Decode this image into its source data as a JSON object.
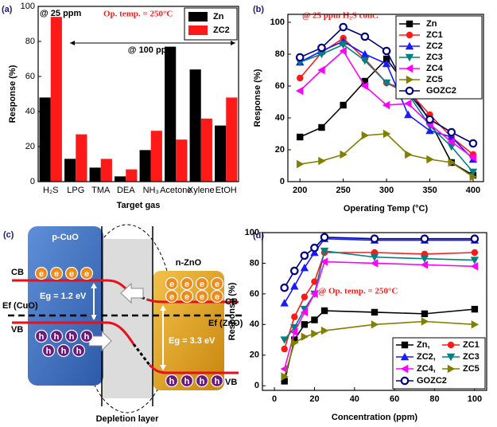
{
  "chart_data": [
    {
      "type": "bar",
      "panel_label": "(a)",
      "x_label": "Target gas",
      "y_label": "Response (%)",
      "categories": [
        "H₂S",
        "LPG",
        "TMA",
        "DEA",
        "NH₃",
        "Acetone",
        "Xylene",
        "EtOH"
      ],
      "series": [
        {
          "name": "Zn",
          "color": "#000000",
          "values": [
            48,
            13,
            8,
            3,
            18,
            77,
            64,
            32
          ]
        },
        {
          "name": "ZC2",
          "color": "#ff1a1a",
          "values": [
            94,
            27,
            13,
            7,
            29,
            24,
            36,
            48
          ]
        }
      ],
      "ylim": [
        0,
        100
      ],
      "yticks": [
        0,
        20,
        40,
        60,
        80,
        100
      ],
      "legend": "upper right",
      "annotations": [
        "@ 25 ppm",
        "@ 100 ppm",
        "Op. temp. = 250°C"
      ]
    },
    {
      "type": "line",
      "panel_label": "(b)",
      "x_label": "Operating Temp (°C)",
      "y_label": "Response (%)",
      "x": [
        200,
        225,
        250,
        275,
        300,
        325,
        350,
        375,
        400
      ],
      "series": [
        {
          "name": "Zn",
          "color": "#000000",
          "marker": "square",
          "values": [
            28,
            34,
            48,
            63,
            77,
            59,
            38,
            12,
            4
          ]
        },
        {
          "name": "ZC1",
          "color": "#ff1a1a",
          "marker": "circle",
          "values": [
            65,
            81,
            90,
            77,
            62,
            57,
            42,
            28,
            17
          ]
        },
        {
          "name": "ZC2",
          "color": "#1a1aff",
          "marker": "triangle-up",
          "values": [
            75,
            82,
            88,
            80,
            74,
            42,
            32,
            28,
            14
          ]
        },
        {
          "name": "ZC3",
          "color": "#008080",
          "marker": "triangle-down",
          "values": [
            75,
            80,
            86,
            76,
            62,
            55,
            35,
            22,
            6
          ]
        },
        {
          "name": "ZC4",
          "color": "#ff00ff",
          "marker": "triangle-left",
          "values": [
            57,
            70,
            82,
            60,
            48,
            49,
            36,
            25,
            15
          ]
        },
        {
          "name": "ZC5",
          "color": "#808000",
          "marker": "triangle-right",
          "values": [
            11,
            13,
            17,
            29,
            30,
            17,
            14,
            12,
            3
          ]
        },
        {
          "name": "GOZC2",
          "color": "#000080",
          "marker": "circle-dot",
          "values": [
            78,
            84,
            97,
            91,
            82,
            56,
            39,
            31,
            24
          ]
        }
      ],
      "xlim": [
        186,
        412
      ],
      "xticks": [
        200,
        250,
        300,
        350,
        400
      ],
      "ylim": [
        0,
        105
      ],
      "yticks": [
        0,
        20,
        40,
        60,
        80,
        100
      ],
      "legend": "upper right",
      "annotations": [
        "@ 25 ppm H₂S conc."
      ]
    },
    {
      "type": "line",
      "panel_label": "(d)",
      "x_label": "Concentration (ppm)",
      "y_label": "Response (%)",
      "x": [
        5,
        10,
        15,
        20,
        25,
        50,
        75,
        100
      ],
      "series": [
        {
          "name": "Zn,",
          "color": "#000000",
          "marker": "square",
          "values": [
            3,
            30,
            40,
            43,
            49,
            48,
            47,
            50
          ]
        },
        {
          "name": "ZC1",
          "color": "#ff1a1a",
          "marker": "circle",
          "values": [
            24,
            45,
            58,
            68,
            87,
            87,
            86,
            87
          ]
        },
        {
          "name": "ZC2,",
          "color": "#1a1aff",
          "marker": "triangle-up",
          "values": [
            54,
            65,
            77,
            87,
            96,
            95,
            95,
            95
          ]
        },
        {
          "name": "ZC3",
          "color": "#008080",
          "marker": "triangle-down",
          "values": [
            30,
            38,
            50,
            60,
            88,
            84,
            83,
            82
          ]
        },
        {
          "name": "ZC4,",
          "color": "#ff00ff",
          "marker": "triangle-left",
          "values": [
            11,
            35,
            48,
            60,
            81,
            80,
            79,
            78
          ]
        },
        {
          "name": "ZC5",
          "color": "#808000",
          "marker": "triangle-right",
          "values": [
            6,
            28,
            32,
            34,
            36,
            40,
            42,
            40
          ]
        },
        {
          "name": "GOZC2",
          "color": "#000080",
          "marker": "circle-dot",
          "values": [
            64,
            75,
            85,
            90,
            97,
            96,
            96,
            96
          ]
        }
      ],
      "xlim": [
        -6,
        106
      ],
      "xticks": [
        0,
        20,
        40,
        60,
        80,
        100
      ],
      "ylim": [
        -3,
        100
      ],
      "yticks": [
        0,
        20,
        40,
        60,
        80,
        100
      ],
      "legend": "lower right",
      "annotations": [
        "@ Op. temp. = 250°C"
      ]
    }
  ],
  "diagram": {
    "panel_label": "(c)",
    "left": "p-CuO",
    "right": "n-ZnO",
    "cb": "CB",
    "vb": "VB",
    "eg_left": "Eg = 1.2 eV",
    "eg_right": "Eg = 3.3 eV",
    "ef_left": "Ef (CuO)",
    "ef_right": "Ef (ZnO)",
    "electron": "e",
    "hole": "h",
    "depletion": "Depletion layer"
  }
}
